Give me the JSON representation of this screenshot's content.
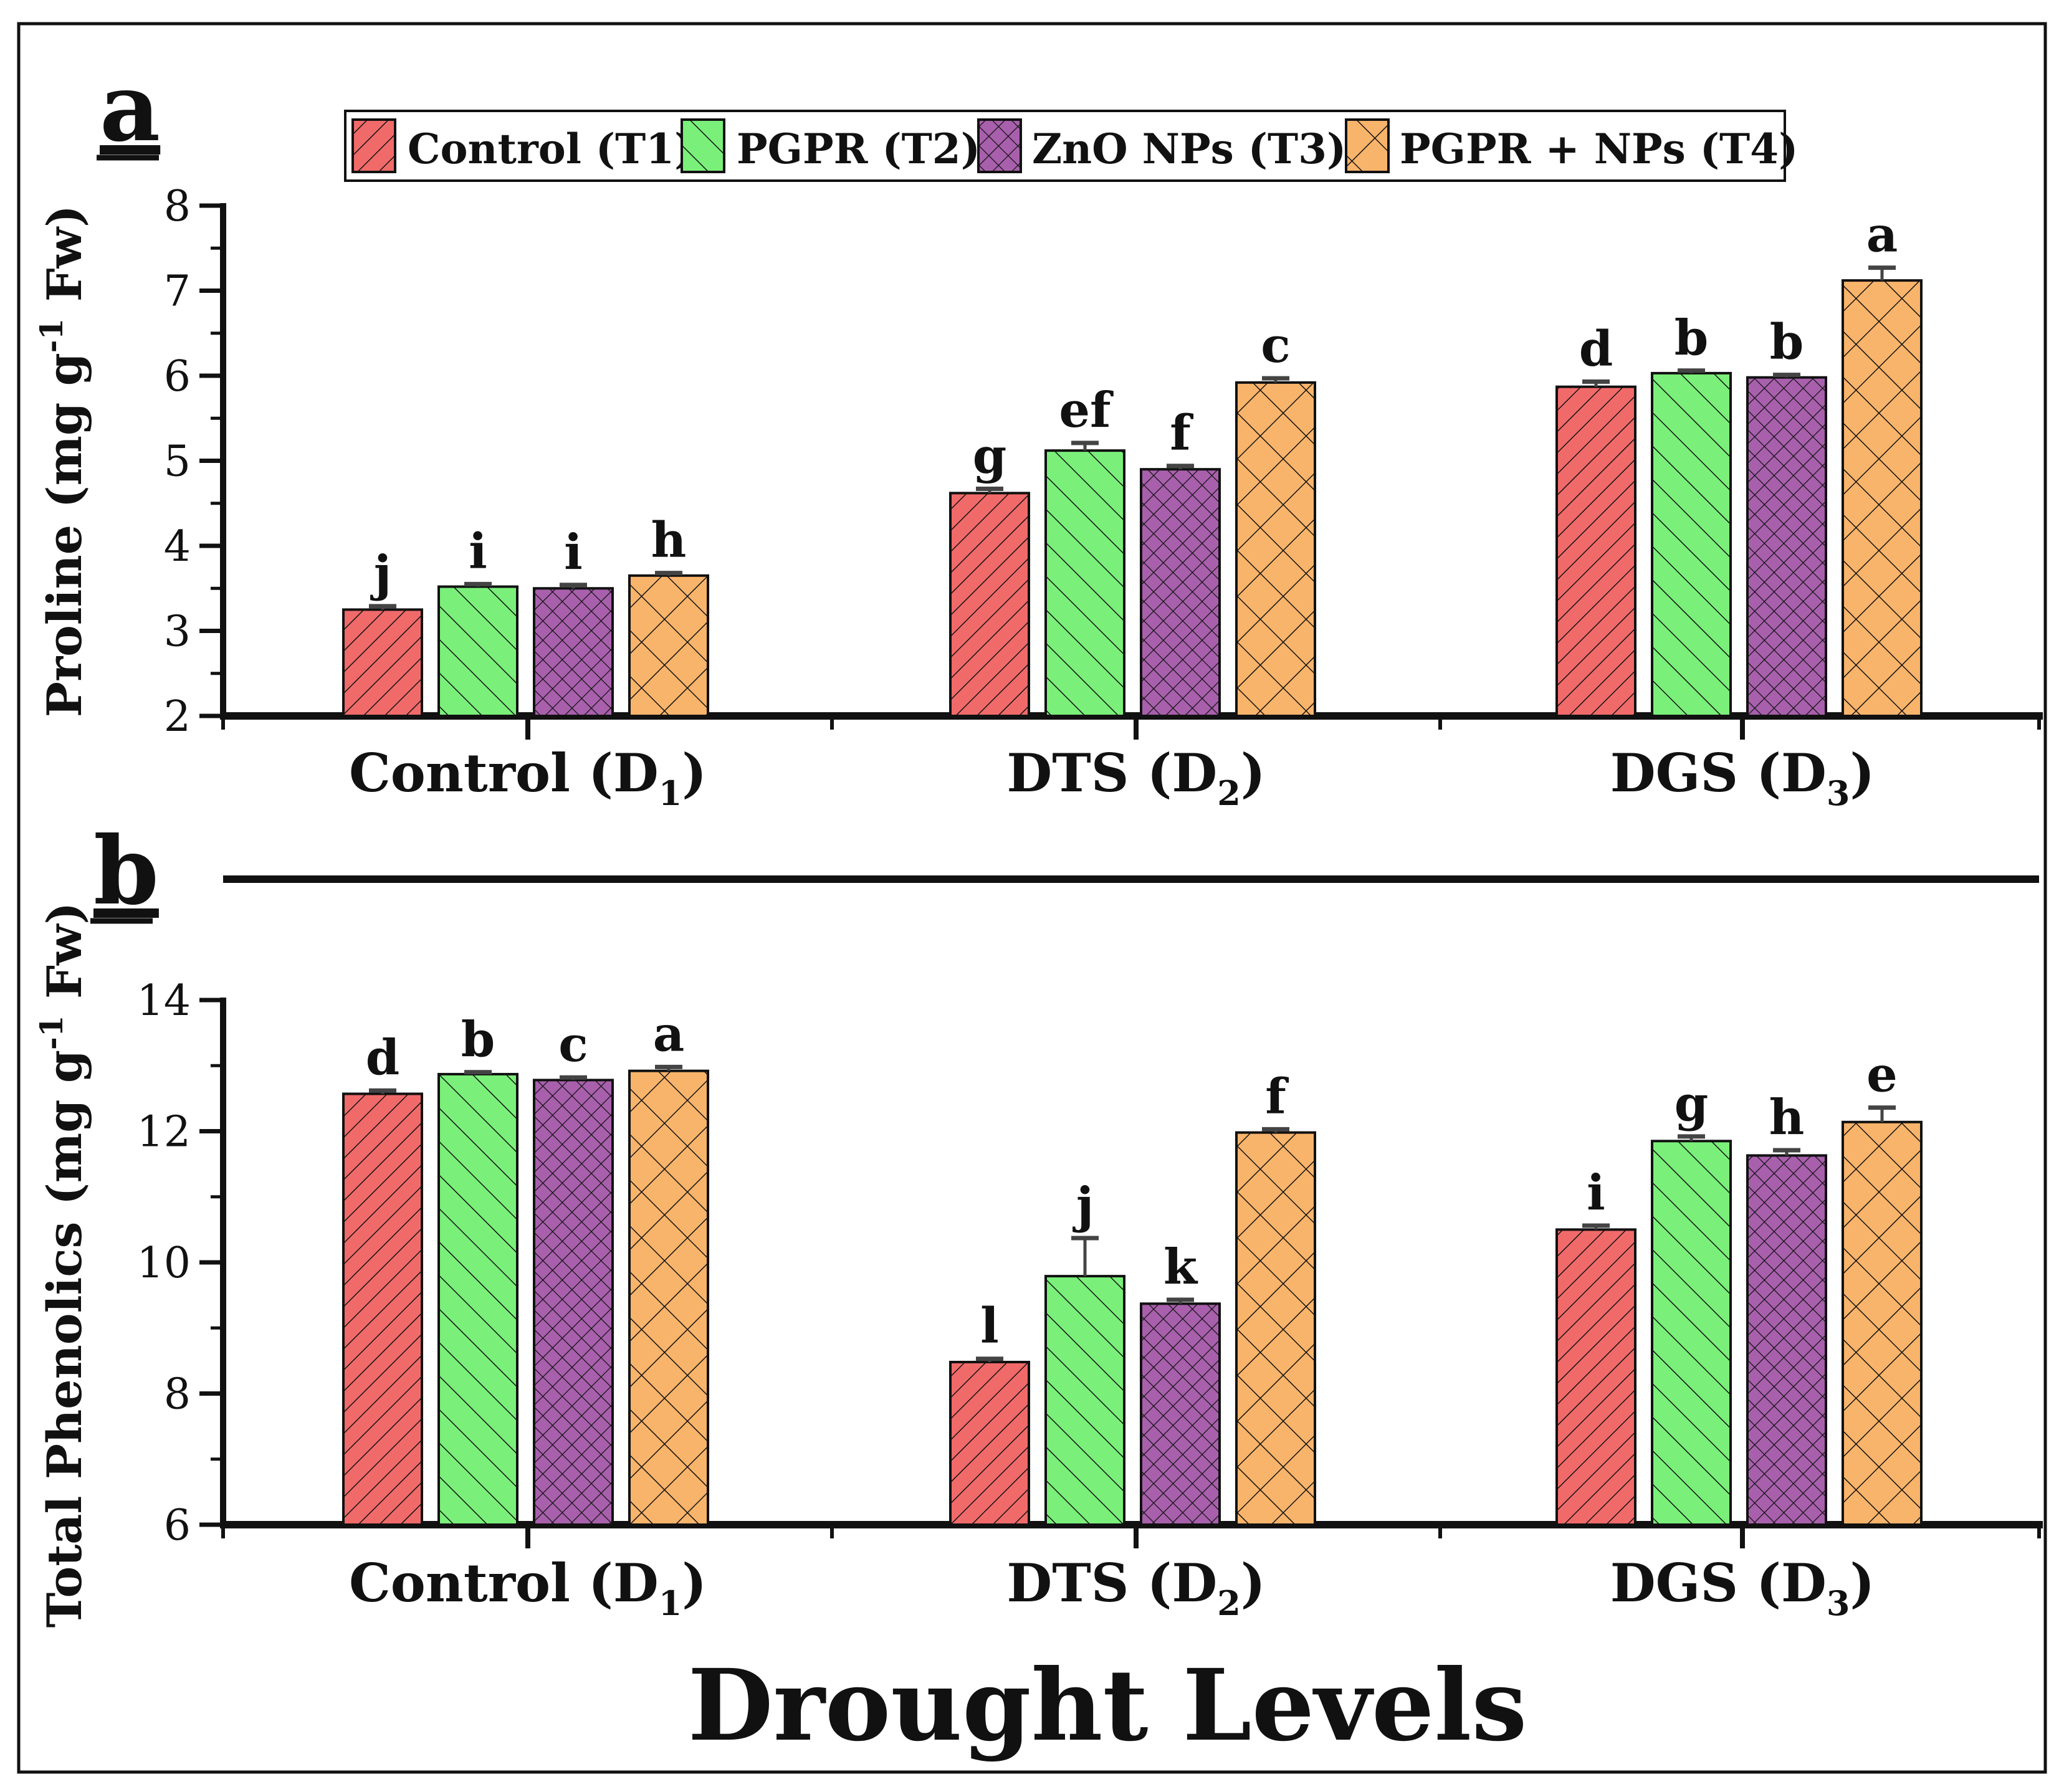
{
  "xlabel_main": "Drought Levels",
  "colors": {
    "t1_fill": "#f16a6a",
    "t2_fill": "#7af07a",
    "t3_fill": "#a860ac",
    "t4_fill": "#f9b46b",
    "ink": "#111111"
  },
  "legend": {
    "entries": [
      {
        "label": "Control (T1)",
        "series": 0
      },
      {
        "label": "PGPR (T2)",
        "series": 1
      },
      {
        "label": "ZnO NPs (T3)",
        "series": 2
      },
      {
        "label": "PGPR + NPs (T4)",
        "series": 3
      }
    ]
  },
  "chart_data": [
    {
      "type": "bar",
      "panel_label": "a",
      "ylabel": "Proline (mg g-1 Fw)",
      "ylabel_parts": {
        "pre": "Proline (mg g",
        "sup": "-1",
        "post": " Fw)"
      },
      "ylim": [
        2,
        8
      ],
      "yticks": [
        2,
        3,
        4,
        5,
        6,
        7,
        8
      ],
      "categories": [
        {
          "main": "Control (D",
          "sub": "1",
          "end": ")"
        },
        {
          "main": "DTS (D",
          "sub": "2",
          "end": ")"
        },
        {
          "main": "DGS (D",
          "sub": "3",
          "end": ")"
        }
      ],
      "series": [
        {
          "name": "Control (T1)",
          "values": [
            3.25,
            4.62,
            5.87
          ],
          "errors": [
            0.04,
            0.05,
            0.06
          ],
          "letters": [
            "j",
            "g",
            "d"
          ]
        },
        {
          "name": "PGPR (T2)",
          "values": [
            3.52,
            5.12,
            6.03
          ],
          "errors": [
            0.03,
            0.09,
            0.03
          ],
          "letters": [
            "i",
            "ef",
            "b"
          ]
        },
        {
          "name": "ZnO NPs (T3)",
          "values": [
            3.5,
            4.9,
            5.98
          ],
          "errors": [
            0.04,
            0.04,
            0.03
          ],
          "letters": [
            "i",
            "f",
            "b"
          ]
        },
        {
          "name": "PGPR + NPs (T4)",
          "values": [
            3.65,
            5.92,
            7.12
          ],
          "errors": [
            0.03,
            0.05,
            0.15
          ],
          "letters": [
            "h",
            "c",
            "a"
          ]
        }
      ]
    },
    {
      "type": "bar",
      "panel_label": "b",
      "ylabel": "Total Phenolics (mg g-1 Fw)",
      "ylabel_parts": {
        "pre": "Total Phenolics (mg g",
        "sup": "-1",
        "post": " Fw)"
      },
      "ylim": [
        6,
        14
      ],
      "yticks": [
        6,
        8,
        10,
        12,
        14
      ],
      "categories": [
        {
          "main": "Control (D",
          "sub": "1",
          "end": ")"
        },
        {
          "main": "DTS (D",
          "sub": "2",
          "end": ")"
        },
        {
          "main": "DGS (D",
          "sub": "3",
          "end": ")"
        }
      ],
      "series": [
        {
          "name": "Control (T1)",
          "values": [
            12.57,
            8.48,
            10.5
          ],
          "errors": [
            0.05,
            0.05,
            0.06
          ],
          "letters": [
            "d",
            "l",
            "i"
          ]
        },
        {
          "name": "PGPR (T2)",
          "values": [
            12.87,
            9.79,
            11.85
          ],
          "errors": [
            0.03,
            0.58,
            0.07
          ],
          "letters": [
            "b",
            "j",
            "g"
          ]
        },
        {
          "name": "ZnO NPs (T3)",
          "values": [
            12.78,
            9.37,
            11.63
          ],
          "errors": [
            0.04,
            0.06,
            0.08
          ],
          "letters": [
            "c",
            "k",
            "h"
          ]
        },
        {
          "name": "PGPR + NPs (T4)",
          "values": [
            12.92,
            11.98,
            12.14
          ],
          "errors": [
            0.06,
            0.05,
            0.22
          ],
          "letters": [
            "a",
            "f",
            "e"
          ]
        }
      ]
    }
  ]
}
